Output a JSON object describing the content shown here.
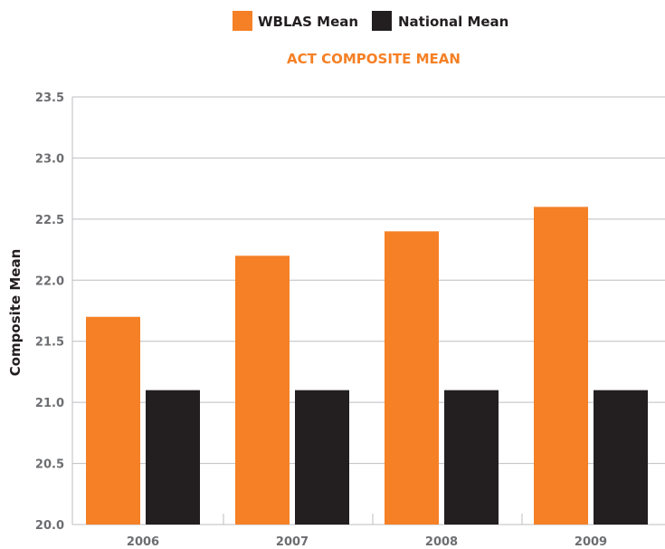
{
  "chart_data": {
    "type": "bar",
    "title": "ACT COMPOSITE MEAN",
    "xlabel": "",
    "ylabel": "Composite Mean",
    "categories": [
      "2006",
      "2007",
      "2008",
      "2009"
    ],
    "series": [
      {
        "name": "WBLAS Mean",
        "color": "#f58025",
        "values": [
          21.7,
          22.2,
          22.4,
          22.6
        ]
      },
      {
        "name": "National Mean",
        "color": "#231f20",
        "values": [
          21.1,
          21.1,
          21.1,
          21.1
        ]
      }
    ],
    "ylim": [
      20.0,
      23.5
    ],
    "yticks": [
      "20.0",
      "20.5",
      "21.0",
      "21.5",
      "22.0",
      "22.5",
      "23.0",
      "23.5"
    ],
    "grid": true,
    "legend_position": "top-center",
    "colors": {
      "title": "#f58025",
      "grid": "#bcbec0",
      "tick_text": "#6d6e71"
    }
  }
}
